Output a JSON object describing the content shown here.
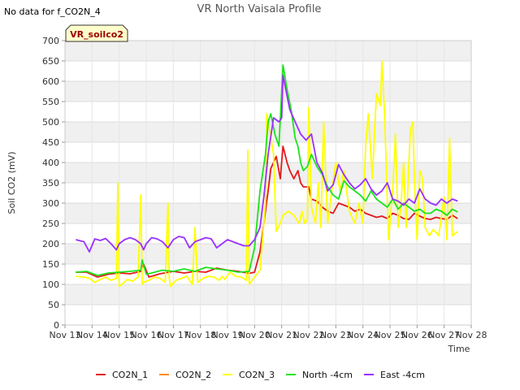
{
  "chart_data": {
    "type": "line",
    "title": "VR North Vaisala Profile",
    "no_data_note": "No data for f_CO2N_4",
    "badge": "VR_soilco2",
    "xlabel": "Time",
    "ylabel": "Soil CO2 (mV)",
    "ylim": [
      0,
      700
    ],
    "yticks": [
      0,
      50,
      100,
      150,
      200,
      250,
      300,
      350,
      400,
      450,
      500,
      550,
      600,
      650,
      700
    ],
    "xlim": [
      13,
      28
    ],
    "xticks": [
      {
        "v": 13,
        "label": "Nov 13"
      },
      {
        "v": 14,
        "label": "Nov 14"
      },
      {
        "v": 15,
        "label": "Nov 15"
      },
      {
        "v": 16,
        "label": "Nov 16"
      },
      {
        "v": 17,
        "label": "Nov 17"
      },
      {
        "v": 18,
        "label": "Nov 18"
      },
      {
        "v": 19,
        "label": "Nov 19"
      },
      {
        "v": 20,
        "label": "Nov 20"
      },
      {
        "v": 21,
        "label": "Nov 21"
      },
      {
        "v": 22,
        "label": "Nov 22"
      },
      {
        "v": 23,
        "label": "Nov 23"
      },
      {
        "v": 24,
        "label": "Nov 24"
      },
      {
        "v": 25,
        "label": "Nov 25"
      },
      {
        "v": 26,
        "label": "Nov 26"
      },
      {
        "v": 27,
        "label": "Nov 27"
      },
      {
        "v": 28,
        "label": "Nov 28"
      }
    ],
    "grid": true,
    "legend_position": "bottom",
    "series": [
      {
        "name": "CO2N_1",
        "color": "#e41a1c",
        "x": [
          13.4,
          13.8,
          14.2,
          14.6,
          15.0,
          15.4,
          15.8,
          15.9,
          16.1,
          16.5,
          17.0,
          17.4,
          17.8,
          18.2,
          18.6,
          19.0,
          19.4,
          19.8,
          20.0,
          20.2,
          20.4,
          20.5,
          20.6,
          20.8,
          20.95,
          21.05,
          21.2,
          21.3,
          21.45,
          21.6,
          21.7,
          21.8,
          22.0,
          22.1,
          22.3,
          22.5,
          22.7,
          22.9,
          23.1,
          23.3,
          23.5,
          23.7,
          23.9,
          24.1,
          24.3,
          24.5,
          24.7,
          24.9,
          25.1,
          25.3,
          25.5,
          25.7,
          25.9,
          26.1,
          26.3,
          26.5,
          26.7,
          26.9,
          27.1,
          27.3,
          27.5
        ],
        "y": [
          130,
          130,
          118,
          125,
          128,
          126,
          132,
          150,
          118,
          126,
          132,
          128,
          132,
          130,
          140,
          135,
          132,
          127,
          130,
          180,
          280,
          330,
          385,
          415,
          360,
          440,
          400,
          380,
          360,
          380,
          350,
          340,
          340,
          310,
          305,
          290,
          280,
          275,
          300,
          295,
          290,
          280,
          285,
          275,
          270,
          265,
          268,
          262,
          275,
          270,
          262,
          260,
          275,
          268,
          262,
          260,
          265,
          262,
          260,
          270,
          262
        ]
      },
      {
        "name": "CO2N_2",
        "color": "#ff8c00",
        "x": [],
        "y": []
      },
      {
        "name": "CO2N_3",
        "color": "#ffff00",
        "x": [
          13.4,
          13.7,
          13.9,
          14.1,
          14.3,
          14.5,
          14.7,
          14.9,
          14.95,
          15.0,
          15.1,
          15.3,
          15.5,
          15.7,
          15.8,
          15.85,
          15.9,
          16.1,
          16.3,
          16.5,
          16.7,
          16.8,
          16.85,
          16.9,
          17.1,
          17.3,
          17.5,
          17.7,
          17.8,
          17.9,
          18.1,
          18.3,
          18.5,
          18.7,
          18.8,
          18.9,
          19.1,
          19.3,
          19.5,
          19.7,
          19.75,
          19.8,
          20.0,
          20.2,
          20.4,
          20.45,
          20.5,
          20.7,
          20.8,
          20.95,
          21.05,
          21.25,
          21.45,
          21.55,
          21.65,
          21.75,
          21.85,
          21.95,
          22.0,
          22.1,
          22.25,
          22.35,
          22.45,
          22.55,
          22.7,
          22.85,
          23.0,
          23.15,
          23.3,
          23.5,
          23.7,
          23.85,
          24.0,
          24.1,
          24.2,
          24.35,
          24.5,
          24.65,
          24.7,
          24.8,
          24.95,
          25.1,
          25.2,
          25.3,
          25.4,
          25.5,
          25.6,
          25.75,
          25.85,
          25.9,
          26.0,
          26.1,
          26.2,
          26.3,
          26.45,
          26.6,
          26.8,
          27.0,
          27.1,
          27.2,
          27.3,
          27.4,
          27.5
        ],
        "y": [
          120,
          118,
          115,
          105,
          112,
          118,
          110,
          115,
          350,
          95,
          100,
          112,
          108,
          118,
          320,
          100,
          105,
          110,
          118,
          115,
          105,
          300,
          115,
          95,
          110,
          115,
          120,
          100,
          240,
          105,
          115,
          120,
          118,
          110,
          120,
          112,
          130,
          120,
          118,
          110,
          430,
          100,
          118,
          135,
          300,
          520,
          500,
          420,
          230,
          250,
          270,
          280,
          270,
          260,
          250,
          280,
          250,
          260,
          535,
          290,
          250,
          350,
          240,
          500,
          250,
          330,
          400,
          330,
          380,
          280,
          250,
          300,
          250,
          440,
          520,
          360,
          570,
          540,
          650,
          520,
          210,
          330,
          470,
          240,
          290,
          400,
          240,
          480,
          500,
          360,
          210,
          380,
          360,
          240,
          220,
          235,
          220,
          315,
          210,
          460,
          220,
          225,
          230
        ]
      },
      {
        "name": "North -4cm",
        "color": "#1be41b",
        "x": [
          13.4,
          13.8,
          14.2,
          14.6,
          15.0,
          15.4,
          15.8,
          15.85,
          16.0,
          16.2,
          16.6,
          17.0,
          17.4,
          17.8,
          18.2,
          18.6,
          19.0,
          19.4,
          19.8,
          20.0,
          20.2,
          20.4,
          20.5,
          20.6,
          20.75,
          20.9,
          21.05,
          21.2,
          21.35,
          21.5,
          21.6,
          21.7,
          21.8,
          21.95,
          22.1,
          22.3,
          22.5,
          22.7,
          22.9,
          23.1,
          23.3,
          23.5,
          23.7,
          23.9,
          24.1,
          24.3,
          24.5,
          24.7,
          24.9,
          25.1,
          25.3,
          25.5,
          25.7,
          25.9,
          26.1,
          26.3,
          26.5,
          26.7,
          26.9,
          27.1,
          27.3,
          27.5
        ],
        "y": [
          130,
          132,
          122,
          128,
          130,
          132,
          135,
          160,
          125,
          128,
          135,
          132,
          138,
          132,
          142,
          138,
          135,
          130,
          132,
          190,
          330,
          420,
          500,
          520,
          470,
          440,
          640,
          580,
          530,
          460,
          440,
          400,
          380,
          390,
          420,
          390,
          370,
          340,
          320,
          310,
          355,
          340,
          330,
          320,
          305,
          330,
          310,
          300,
          290,
          310,
          285,
          300,
          290,
          280,
          285,
          275,
          275,
          285,
          280,
          270,
          285,
          278
        ]
      },
      {
        "name": "East -4cm",
        "color": "#9b30ff",
        "x": [
          13.4,
          13.7,
          13.9,
          14.1,
          14.3,
          14.5,
          14.7,
          14.9,
          15.0,
          15.2,
          15.4,
          15.6,
          15.8,
          15.9,
          16.0,
          16.2,
          16.4,
          16.6,
          16.8,
          17.0,
          17.2,
          17.4,
          17.6,
          17.8,
          18.0,
          18.2,
          18.4,
          18.6,
          18.8,
          19.0,
          19.2,
          19.4,
          19.6,
          19.8,
          20.0,
          20.2,
          20.35,
          20.5,
          20.7,
          20.9,
          21.0,
          21.05,
          21.15,
          21.3,
          21.5,
          21.7,
          21.9,
          22.1,
          22.3,
          22.5,
          22.7,
          22.9,
          23.1,
          23.3,
          23.5,
          23.7,
          23.9,
          24.1,
          24.3,
          24.5,
          24.7,
          24.9,
          25.1,
          25.3,
          25.5,
          25.7,
          25.9,
          26.1,
          26.3,
          26.5,
          26.7,
          26.9,
          27.1,
          27.3,
          27.5
        ],
        "y": [
          210,
          205,
          180,
          212,
          208,
          213,
          200,
          185,
          200,
          210,
          215,
          210,
          200,
          185,
          200,
          215,
          212,
          205,
          190,
          210,
          218,
          215,
          190,
          205,
          210,
          215,
          212,
          190,
          200,
          210,
          205,
          200,
          195,
          195,
          210,
          240,
          320,
          420,
          510,
          500,
          510,
          615,
          580,
          530,
          500,
          470,
          455,
          470,
          400,
          375,
          330,
          345,
          395,
          370,
          350,
          335,
          345,
          360,
          335,
          320,
          330,
          350,
          310,
          305,
          295,
          310,
          300,
          335,
          310,
          300,
          295,
          310,
          300,
          310,
          305
        ]
      }
    ]
  }
}
